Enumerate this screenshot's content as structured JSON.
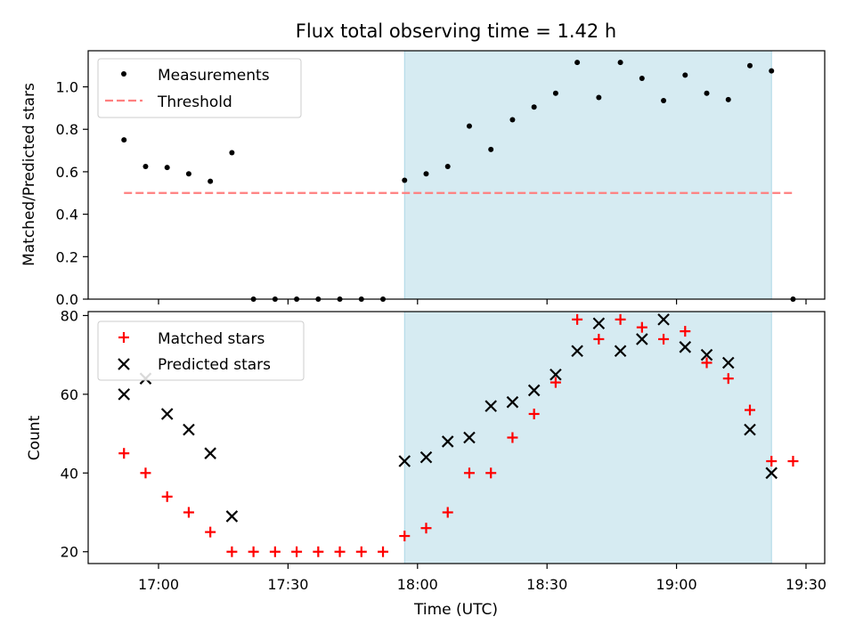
{
  "chart_data": [
    {
      "type": "scatter",
      "title": "Flux total observing time = 1.42 h",
      "xlabel": "",
      "ylabel": "Matched/Predicted stars",
      "ylim": [
        0,
        1.17
      ],
      "yticks": [
        "0.0",
        "0.2",
        "0.4",
        "0.6",
        "0.8",
        "1.0"
      ],
      "grid": false,
      "legend_position": "top-left",
      "highlight_span": {
        "start": "17:57",
        "end": "19:22",
        "color": "#add8e6"
      },
      "threshold": {
        "name": "Threshold",
        "value": 0.5,
        "color": "#ff7f7f",
        "x_start": "16:52",
        "x_end": "19:27"
      },
      "series": [
        {
          "name": "Measurements",
          "color": "#000000",
          "marker": "dot",
          "x": [
            "16:52",
            "16:57",
            "17:02",
            "17:07",
            "17:12",
            "17:17",
            "17:22",
            "17:27",
            "17:32",
            "17:37",
            "17:42",
            "17:47",
            "17:52",
            "17:57",
            "18:02",
            "18:07",
            "18:12",
            "18:17",
            "18:22",
            "18:27",
            "18:32",
            "18:37",
            "18:42",
            "18:47",
            "18:52",
            "18:57",
            "19:02",
            "19:07",
            "19:12",
            "19:17",
            "19:22",
            "19:27"
          ],
          "y": [
            0.75,
            0.625,
            0.62,
            0.59,
            0.555,
            0.69,
            0,
            0,
            0,
            0,
            0,
            0,
            0,
            0.56,
            0.59,
            0.625,
            0.815,
            0.705,
            0.845,
            0.905,
            0.97,
            1.115,
            0.95,
            1.115,
            1.04,
            0.935,
            1.055,
            0.97,
            0.94,
            1.1,
            1.075,
            0
          ]
        }
      ]
    },
    {
      "type": "scatter",
      "xlabel": "Time (UTC)",
      "ylabel": "Count",
      "ylim": [
        17,
        81
      ],
      "yticks": [
        "20",
        "40",
        "60",
        "80"
      ],
      "xticks": [
        "17:00",
        "17:30",
        "18:00",
        "18:30",
        "19:00",
        "19:30"
      ],
      "grid": false,
      "legend_position": "top-left",
      "highlight_span": {
        "start": "17:57",
        "end": "19:22",
        "color": "#add8e6"
      },
      "series": [
        {
          "name": "Matched stars",
          "color": "#ff0000",
          "marker": "plus",
          "x": [
            "16:52",
            "16:57",
            "17:02",
            "17:07",
            "17:12",
            "17:17",
            "17:22",
            "17:27",
            "17:32",
            "17:37",
            "17:42",
            "17:47",
            "17:52",
            "17:57",
            "18:02",
            "18:07",
            "18:12",
            "18:17",
            "18:22",
            "18:27",
            "18:32",
            "18:37",
            "18:42",
            "18:47",
            "18:52",
            "18:57",
            "19:02",
            "19:07",
            "19:12",
            "19:17",
            "19:22",
            "19:27"
          ],
          "y": [
            45,
            40,
            34,
            30,
            25,
            20,
            20,
            20,
            20,
            20,
            20,
            20,
            20,
            24,
            26,
            30,
            40,
            40,
            49,
            55,
            63,
            79,
            74,
            79,
            77,
            74,
            76,
            68,
            64,
            56,
            43,
            43
          ]
        },
        {
          "name": "Predicted stars",
          "color": "#000000",
          "marker": "x",
          "x": [
            "16:52",
            "16:57",
            "17:02",
            "17:07",
            "17:12",
            "17:17",
            "17:57",
            "18:02",
            "18:07",
            "18:12",
            "18:17",
            "18:22",
            "18:27",
            "18:32",
            "18:37",
            "18:42",
            "18:47",
            "18:52",
            "18:57",
            "19:02",
            "19:07",
            "19:12",
            "19:17",
            "19:22"
          ],
          "y": [
            60,
            64,
            55,
            51,
            45,
            29,
            43,
            44,
            48,
            49,
            57,
            58,
            61,
            65,
            71,
            78,
            71,
            74,
            79,
            72,
            70,
            68,
            51,
            40
          ]
        }
      ]
    }
  ]
}
